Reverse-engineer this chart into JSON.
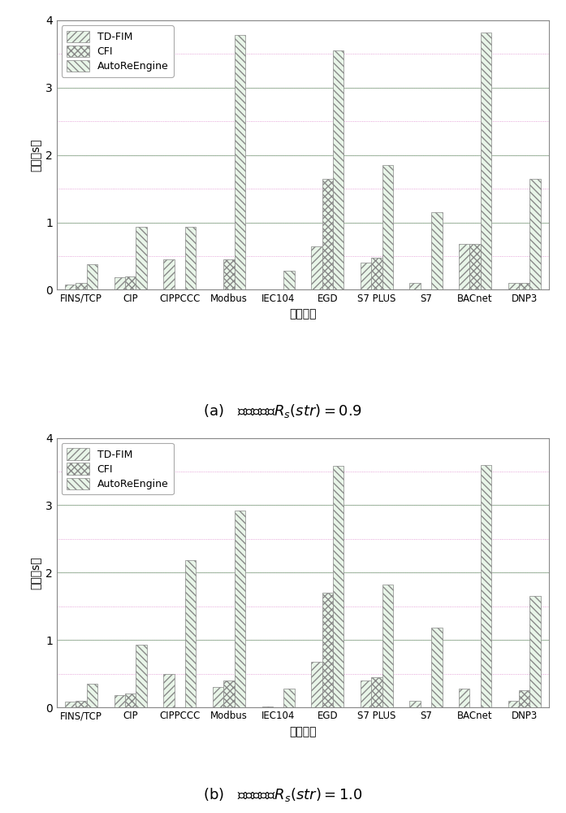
{
  "categories": [
    "FINS/TCP",
    "CIP",
    "CIPPCCC",
    "Modbus",
    "IEC104",
    "EGD",
    "S7 PLUS",
    "S7",
    "BACnet",
    "DNP3"
  ],
  "chart_a": {
    "TD_FIM": [
      0.08,
      0.18,
      0.45,
      0.01,
      0.01,
      0.65,
      0.4,
      0.1,
      0.68,
      0.1
    ],
    "CFI": [
      0.1,
      0.2,
      0.0,
      0.45,
      0.0,
      1.65,
      0.48,
      0.0,
      0.68,
      0.1
    ],
    "AutoReEngine": [
      0.38,
      0.93,
      0.93,
      3.78,
      0.28,
      3.55,
      1.85,
      1.15,
      3.82,
      1.65
    ]
  },
  "chart_b": {
    "TD_FIM": [
      0.08,
      0.18,
      0.5,
      0.3,
      0.01,
      0.68,
      0.4,
      0.1,
      0.28,
      0.1
    ],
    "CFI": [
      0.1,
      0.2,
      0.0,
      0.4,
      0.0,
      1.7,
      0.45,
      0.0,
      0.0,
      0.25
    ],
    "AutoReEngine": [
      0.35,
      0.93,
      2.18,
      2.92,
      0.28,
      3.58,
      1.82,
      1.18,
      3.6,
      1.65
    ]
  },
  "legend_labels": [
    "TD-FIM",
    "CFI",
    "AutoReEngine"
  ],
  "ylabel": "时间（s）",
  "xlabel": "工业协议",
  "caption_a": "(a)   最小支持度$R_s(str) = 0.9$",
  "caption_b": "(b)   最小支持度$R_s(str) = 1.0$",
  "ylim": [
    0,
    4
  ],
  "figsize": [
    6.97,
    10.0
  ],
  "dpi": 100
}
